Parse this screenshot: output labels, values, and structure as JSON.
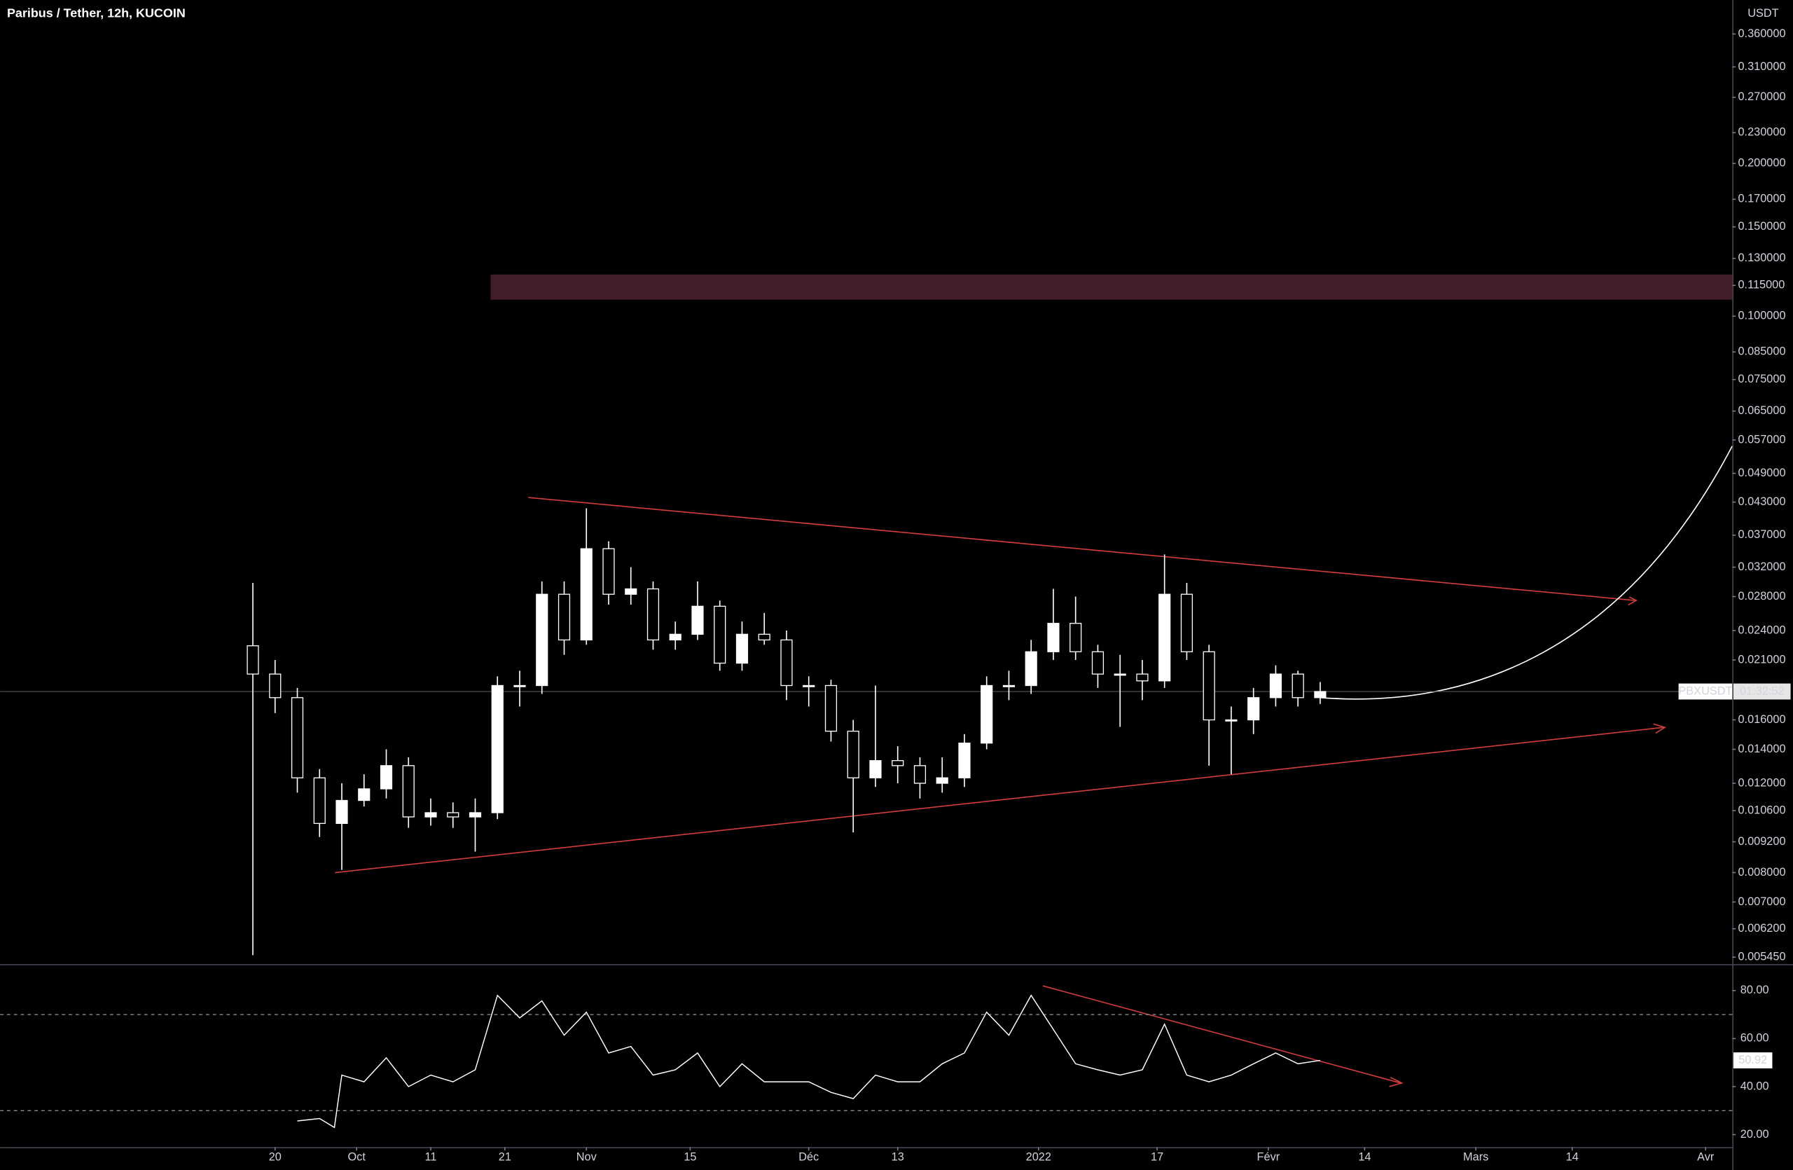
{
  "header": {
    "title": "Paribus / Tether, 12h, KUCOIN"
  },
  "chart_data": [
    {
      "type": "candlestick",
      "symbol": "PBXUSDT",
      "countdown": "01:32:52",
      "unit": "USDT",
      "color": "#ffffff",
      "log_scale": true,
      "grid": false,
      "x": [
        16,
        19,
        22,
        25,
        28,
        31,
        34,
        37,
        40,
        43,
        46,
        49,
        52,
        55,
        58,
        61,
        64,
        67,
        70,
        73,
        76,
        79,
        82,
        85,
        88,
        91,
        94,
        97,
        100,
        103,
        106,
        109,
        112,
        115,
        118,
        121,
        124,
        127,
        130,
        133,
        136,
        139,
        142,
        145,
        148,
        151,
        154,
        157,
        160
      ],
      "open": [
        0.0224,
        0.0197,
        0.0177,
        0.0123,
        0.01,
        0.0111,
        0.0117,
        0.013,
        0.0103,
        0.0105,
        0.0103,
        0.0105,
        0.0187,
        0.0187,
        0.0283,
        0.023,
        0.0348,
        0.0283,
        0.029,
        0.023,
        0.0236,
        0.0268,
        0.0207,
        0.0236,
        0.023,
        0.0187,
        0.0187,
        0.0152,
        0.0123,
        0.0133,
        0.013,
        0.012,
        0.0123,
        0.0144,
        0.0187,
        0.0187,
        0.0218,
        0.0248,
        0.0218,
        0.0197,
        0.0197,
        0.0191,
        0.0283,
        0.0218,
        0.016,
        0.016,
        0.0177,
        0.0197,
        0.0177
      ],
      "high": [
        0.0298,
        0.021,
        0.0185,
        0.0128,
        0.012,
        0.0125,
        0.014,
        0.0135,
        0.0112,
        0.011,
        0.0112,
        0.0195,
        0.02,
        0.03,
        0.03,
        0.0418,
        0.036,
        0.032,
        0.03,
        0.025,
        0.03,
        0.0275,
        0.025,
        0.026,
        0.024,
        0.0195,
        0.0192,
        0.016,
        0.0187,
        0.0142,
        0.0135,
        0.0135,
        0.015,
        0.0195,
        0.02,
        0.023,
        0.029,
        0.028,
        0.0225,
        0.0215,
        0.021,
        0.0339,
        0.0298,
        0.0225,
        0.017,
        0.0185,
        0.0205,
        0.02,
        0.019
      ],
      "low": [
        0.0055,
        0.0165,
        0.0115,
        0.0094,
        0.0081,
        0.0108,
        0.0112,
        0.0098,
        0.0099,
        0.0098,
        0.0088,
        0.0102,
        0.017,
        0.018,
        0.0215,
        0.0225,
        0.027,
        0.027,
        0.022,
        0.022,
        0.023,
        0.02,
        0.02,
        0.0225,
        0.0175,
        0.017,
        0.0145,
        0.0096,
        0.0118,
        0.012,
        0.0112,
        0.0115,
        0.0118,
        0.014,
        0.0175,
        0.018,
        0.021,
        0.021,
        0.0185,
        0.0155,
        0.0175,
        0.0185,
        0.021,
        0.013,
        0.0125,
        0.015,
        0.017,
        0.017,
        0.0172
      ],
      "close": [
        0.0197,
        0.0177,
        0.0123,
        0.01,
        0.0111,
        0.0117,
        0.013,
        0.0103,
        0.0105,
        0.0103,
        0.0105,
        0.0187,
        0.0187,
        0.0283,
        0.023,
        0.0348,
        0.0283,
        0.029,
        0.023,
        0.0236,
        0.0268,
        0.0207,
        0.0236,
        0.023,
        0.0187,
        0.0187,
        0.0152,
        0.0123,
        0.0133,
        0.013,
        0.012,
        0.0123,
        0.0144,
        0.0187,
        0.0187,
        0.0218,
        0.0248,
        0.0218,
        0.0197,
        0.0197,
        0.0191,
        0.0283,
        0.0218,
        0.016,
        0.016,
        0.0177,
        0.0197,
        0.0177,
        0.0182
      ],
      "xlim": [
        -18.1,
        215.6
      ],
      "xticks": [
        {
          "value": 19,
          "label": "20"
        },
        {
          "value": 30,
          "label": "Oct"
        },
        {
          "value": 40,
          "label": "11"
        },
        {
          "value": 50,
          "label": "21"
        },
        {
          "value": 61,
          "label": "Nov"
        },
        {
          "value": 75,
          "label": "15"
        },
        {
          "value": 91,
          "label": "Déc"
        },
        {
          "value": 103,
          "label": "13"
        },
        {
          "value": 122,
          "label": "2022"
        },
        {
          "value": 138,
          "label": "17"
        },
        {
          "value": 153,
          "label": "Févr"
        },
        {
          "value": 166,
          "label": "14"
        },
        {
          "value": 181,
          "label": "Mars"
        },
        {
          "value": 194,
          "label": "14"
        },
        {
          "value": 212,
          "label": "Avr"
        }
      ],
      "ylim": [
        0.00528,
        0.42
      ],
      "yticks": [
        {
          "value": 0.36,
          "label": "0.360000"
        },
        {
          "value": 0.31,
          "label": "0.310000"
        },
        {
          "value": 0.27,
          "label": "0.270000"
        },
        {
          "value": 0.23,
          "label": "0.230000"
        },
        {
          "value": 0.2,
          "label": "0.200000"
        },
        {
          "value": 0.17,
          "label": "0.170000"
        },
        {
          "value": 0.15,
          "label": "0.150000"
        },
        {
          "value": 0.13,
          "label": "0.130000"
        },
        {
          "value": 0.115,
          "label": "0.115000"
        },
        {
          "value": 0.1,
          "label": "0.100000"
        },
        {
          "value": 0.085,
          "label": "0.085000"
        },
        {
          "value": 0.075,
          "label": "0.075000"
        },
        {
          "value": 0.065,
          "label": "0.065000"
        },
        {
          "value": 0.057,
          "label": "0.057000"
        },
        {
          "value": 0.049,
          "label": "0.049000"
        },
        {
          "value": 0.043,
          "label": "0.043000"
        },
        {
          "value": 0.037,
          "label": "0.037000"
        },
        {
          "value": 0.032,
          "label": "0.032000"
        },
        {
          "value": 0.028,
          "label": "0.028000"
        },
        {
          "value": 0.024,
          "label": "0.024000"
        },
        {
          "value": 0.021,
          "label": "0.021000"
        },
        {
          "value": 0.016,
          "label": "0.016000"
        },
        {
          "value": 0.014,
          "label": "0.014000"
        },
        {
          "value": 0.012,
          "label": "0.012000"
        },
        {
          "value": 0.0106,
          "label": "0.010600"
        },
        {
          "value": 0.0092,
          "label": "0.009200"
        },
        {
          "value": 0.008,
          "label": "0.008000"
        },
        {
          "value": 0.007,
          "label": "0.007000"
        },
        {
          "value": 0.0062,
          "label": "0.006200"
        },
        {
          "value": 0.00545,
          "label": "0.005450"
        }
      ]
    },
    {
      "type": "line",
      "color": "#ffffff",
      "current_label": "50.92",
      "x": [
        22,
        25,
        27,
        28,
        31,
        34,
        37,
        40,
        43,
        46,
        49,
        52,
        55,
        58,
        61,
        64,
        67,
        70,
        73,
        76,
        79,
        82,
        85,
        88,
        91,
        94,
        97,
        100,
        103,
        106,
        109,
        112,
        115,
        118,
        121,
        124,
        127,
        130,
        133,
        136,
        139,
        142,
        145,
        148,
        151,
        154,
        157,
        160
      ],
      "values": [
        25.7,
        26.7,
        23,
        44.8,
        42,
        52,
        40,
        44.8,
        42,
        47,
        78,
        68.6,
        75.7,
        61.4,
        71,
        54,
        56.7,
        44.8,
        47,
        54,
        40,
        49.5,
        42,
        42,
        42,
        37.6,
        35,
        44.8,
        42,
        42,
        49.5,
        54,
        71,
        61.4,
        78,
        63.8,
        49.5,
        47,
        44.8,
        47,
        66,
        44.8,
        42,
        44.8,
        49.5,
        54,
        49.5,
        50.92
      ],
      "ylim": [
        14.8,
        91
      ],
      "yticks": [
        {
          "value": 80,
          "label": "80.00"
        },
        {
          "value": 60,
          "label": "60.00"
        },
        {
          "value": 40,
          "label": "40.00"
        },
        {
          "value": 20,
          "label": "20.00"
        }
      ],
      "levels": [
        70,
        30
      ]
    }
  ]
}
